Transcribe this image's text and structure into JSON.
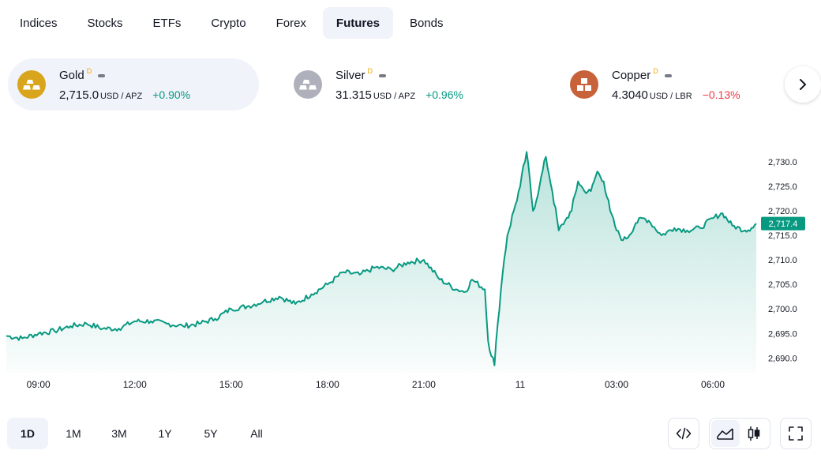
{
  "tabs": [
    {
      "label": "Indices",
      "active": false
    },
    {
      "label": "Stocks",
      "active": false
    },
    {
      "label": "ETFs",
      "active": false
    },
    {
      "label": "Crypto",
      "active": false
    },
    {
      "label": "Forex",
      "active": false
    },
    {
      "label": "Futures",
      "active": true
    },
    {
      "label": "Bonds",
      "active": false
    }
  ],
  "cards": [
    {
      "name": "Gold",
      "delay": "D",
      "price": "2,715.0",
      "unit": "USD / APZ",
      "change": "+0.90%",
      "direction": "up",
      "color": "#d8a51c",
      "icon": "gold-bars-icon"
    },
    {
      "name": "Silver",
      "delay": "D",
      "price": "31.315",
      "unit": "USD / APZ",
      "change": "+0.96%",
      "direction": "up",
      "color": "#aeb1bb",
      "icon": "silver-bars-icon"
    },
    {
      "name": "Copper",
      "delay": "D",
      "price": "4.3040",
      "unit": "USD / LBR",
      "change": "−0.13%",
      "direction": "down",
      "color": "#c7623a",
      "icon": "copper-blocks-icon"
    }
  ],
  "ranges": [
    {
      "label": "1D",
      "active": true
    },
    {
      "label": "1M",
      "active": false
    },
    {
      "label": "3M",
      "active": false
    },
    {
      "label": "1Y",
      "active": false
    },
    {
      "label": "5Y",
      "active": false
    },
    {
      "label": "All",
      "active": false
    }
  ],
  "chart_data": {
    "type": "area",
    "line_color": "#089981",
    "current_price": 2717.4,
    "current_price_label": "2,717.4",
    "ylim": [
      2687,
      2734
    ],
    "yticks": [
      {
        "value": 2730,
        "label": "2,730.0"
      },
      {
        "value": 2725,
        "label": "2,725.0"
      },
      {
        "value": 2720,
        "label": "2,720.0"
      },
      {
        "value": 2715,
        "label": "2,715.0"
      },
      {
        "value": 2710,
        "label": "2,710.0"
      },
      {
        "value": 2705,
        "label": "2,705.0"
      },
      {
        "value": 2700,
        "label": "2,700.0"
      },
      {
        "value": 2695,
        "label": "2,695.0"
      },
      {
        "value": 2690,
        "label": "2,690.0"
      }
    ],
    "xlim_hours": [
      8,
      31.35
    ],
    "xticks": [
      {
        "hour": 9,
        "label": "09:00"
      },
      {
        "hour": 12,
        "label": "12:00"
      },
      {
        "hour": 15,
        "label": "15:00"
      },
      {
        "hour": 18,
        "label": "18:00"
      },
      {
        "hour": 21,
        "label": "21:00"
      },
      {
        "hour": 24,
        "label": "11"
      },
      {
        "hour": 27,
        "label": "03:00"
      },
      {
        "hour": 30,
        "label": "06:00"
      }
    ],
    "series": [
      {
        "x": [
          8.0,
          8.5,
          9.0,
          9.5,
          10.0,
          10.5,
          11.0,
          11.5,
          12.0,
          12.5,
          13.0,
          13.5,
          14.0,
          14.5,
          15.0,
          15.5,
          16.0,
          16.5,
          17.0,
          17.5,
          18.0,
          18.5,
          19.0,
          19.5,
          20.0,
          20.5,
          21.0,
          21.5,
          22.0,
          22.3,
          22.5,
          22.9,
          23.0,
          23.2,
          23.3,
          23.4,
          23.5,
          23.6,
          23.8,
          24.0,
          24.2,
          24.4,
          24.6,
          24.8,
          25.0,
          25.2,
          25.4,
          25.6,
          25.8,
          26.0,
          26.2,
          26.4,
          26.6,
          26.8,
          27.0,
          27.2,
          27.4,
          27.6,
          27.8,
          28.0,
          28.4,
          28.8,
          29.2,
          29.6,
          30.0,
          30.3,
          30.6,
          31.0,
          31.2,
          31.35
        ],
        "y": [
          2694.5,
          2694.0,
          2695.0,
          2695.5,
          2696.5,
          2697.0,
          2696.0,
          2696.0,
          2697.5,
          2697.5,
          2697.0,
          2696.5,
          2697.0,
          2698.0,
          2700.0,
          2700.5,
          2701.5,
          2702.5,
          2701.0,
          2703.0,
          2705.0,
          2707.5,
          2707.0,
          2708.5,
          2708.0,
          2709.5,
          2710.0,
          2706.0,
          2704.0,
          2703.5,
          2706.0,
          2704.0,
          2693.5,
          2688.5,
          2697.0,
          2704.0,
          2710.0,
          2715.0,
          2720.0,
          2725.0,
          2732.0,
          2720.0,
          2725.0,
          2731.0,
          2724.0,
          2716.0,
          2718.0,
          2720.0,
          2726.0,
          2724.0,
          2724.0,
          2728.0,
          2726.0,
          2720.0,
          2716.0,
          2714.0,
          2715.0,
          2717.5,
          2718.5,
          2718.0,
          2715.0,
          2716.5,
          2716.0,
          2716.5,
          2718.5,
          2719.5,
          2717.0,
          2716.0,
          2716.5,
          2717.4
        ]
      }
    ]
  }
}
